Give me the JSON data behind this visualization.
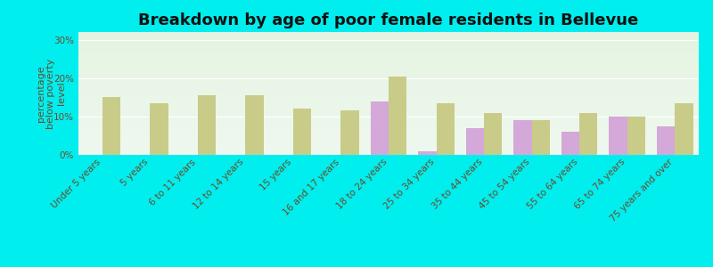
{
  "title": "Breakdown by age of poor female residents in Bellevue",
  "ylabel": "percentage\nbelow poverty\nlevel",
  "background_color": "#e8f5e8",
  "outer_background": "#00eeee",
  "categories": [
    "Under 5 years",
    "5 years",
    "6 to 11 years",
    "12 to 14 years",
    "15 years",
    "16 and 17 years",
    "18 to 24 years",
    "25 to 34 years",
    "35 to 44 years",
    "45 to 54 years",
    "55 to 64 years",
    "65 to 74 years",
    "75 years and over"
  ],
  "bellevue": [
    0,
    0,
    0,
    0,
    0,
    0,
    14.0,
    1.0,
    7.0,
    9.0,
    6.0,
    10.0,
    7.5
  ],
  "pennsylvania": [
    15.0,
    13.5,
    15.5,
    15.5,
    12.0,
    11.5,
    20.5,
    13.5,
    11.0,
    9.0,
    11.0,
    10.0,
    13.5
  ],
  "bellevue_color": "#d4a8d8",
  "pennsylvania_color": "#c8cc88",
  "ylim": [
    0,
    32
  ],
  "yticks": [
    0,
    10,
    20,
    30
  ],
  "ytick_labels": [
    "0%",
    "10%",
    "20%",
    "30%"
  ],
  "bar_width": 0.38,
  "title_fontsize": 13,
  "axis_label_fontsize": 8,
  "tick_fontsize": 7.5,
  "legend_fontsize": 9.5
}
